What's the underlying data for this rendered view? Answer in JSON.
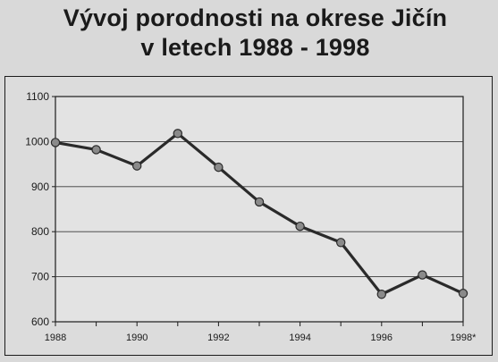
{
  "title": {
    "line1": "Vývoj porodnosti na okrese Jičín",
    "line2": "v letech 1988 - 1998"
  },
  "chart_data": {
    "type": "line",
    "title": "Vývoj porodnosti na okrese Jičín v letech 1988 - 1998",
    "xlabel": "",
    "ylabel": "",
    "x": [
      1988,
      1989,
      1990,
      1991,
      1992,
      1993,
      1994,
      1995,
      1996,
      1997,
      1998
    ],
    "series": [
      {
        "values": [
          998,
          982,
          946,
          1018,
          943,
          866,
          812,
          776,
          661,
          704,
          663
        ]
      }
    ],
    "xtick_labels": [
      "1988",
      "1990",
      "1992",
      "1994",
      "1996",
      "1998*"
    ],
    "xtick_values": [
      1988,
      1990,
      1992,
      1994,
      1996,
      1998
    ],
    "yticks": [
      600,
      700,
      800,
      900,
      1000,
      1100
    ],
    "ytick_labels": [
      "600",
      "700",
      "800",
      "900",
      "1000",
      "1100"
    ],
    "xlim": [
      1988,
      1998
    ],
    "ylim": [
      600,
      1100
    ],
    "grid": "horizontal",
    "colors": {
      "line": "#2a2a2a",
      "marker": "#8a8a8a",
      "plot_bg": "#e2e2e2",
      "grid": "#3a3a3a"
    }
  }
}
